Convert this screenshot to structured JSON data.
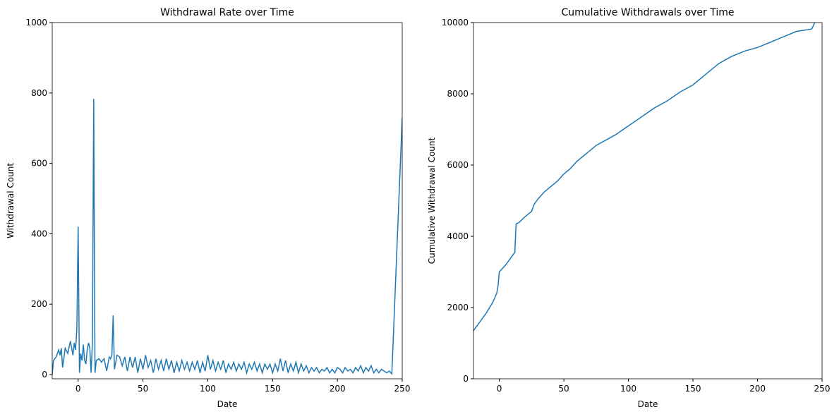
{
  "chart_data": [
    {
      "type": "line",
      "title": "Withdrawal Rate over Time",
      "xlabel": "Date",
      "ylabel": "Withdrawal Count",
      "xlim": [
        -20,
        250
      ],
      "ylim": [
        -12,
        1000
      ],
      "xticks": [
        0,
        50,
        100,
        150,
        200,
        250
      ],
      "yticks": [
        0,
        200,
        400,
        600,
        800,
        1000
      ],
      "x": [
        -20,
        -19,
        -17,
        -15,
        -14,
        -13,
        -12,
        -10,
        -8,
        -6,
        -5,
        -4,
        -3,
        -2,
        -1,
        0,
        1,
        2,
        3,
        4,
        5,
        6,
        7,
        8,
        9,
        10,
        11,
        12,
        13,
        14,
        16,
        18,
        20,
        22,
        24,
        25,
        26,
        27,
        28,
        30,
        32,
        34,
        36,
        38,
        40,
        42,
        44,
        46,
        48,
        50,
        52,
        54,
        56,
        58,
        60,
        62,
        64,
        66,
        68,
        70,
        72,
        74,
        76,
        78,
        80,
        82,
        84,
        86,
        88,
        90,
        92,
        94,
        96,
        98,
        100,
        102,
        104,
        106,
        108,
        110,
        112,
        114,
        116,
        118,
        120,
        122,
        124,
        126,
        128,
        130,
        132,
        134,
        136,
        138,
        140,
        142,
        144,
        146,
        148,
        150,
        152,
        154,
        156,
        158,
        160,
        162,
        164,
        166,
        168,
        170,
        172,
        174,
        176,
        178,
        180,
        182,
        184,
        186,
        188,
        190,
        192,
        194,
        196,
        198,
        200,
        202,
        204,
        206,
        208,
        210,
        212,
        214,
        216,
        218,
        220,
        222,
        224,
        226,
        228,
        230,
        232,
        234,
        236,
        238,
        240,
        242,
        250
      ],
      "series": [
        {
          "color": "#1f77b4",
          "values": [
            0,
            40,
            50,
            70,
            55,
            75,
            20,
            75,
            60,
            95,
            75,
            55,
            90,
            70,
            130,
            420,
            5,
            60,
            40,
            85,
            40,
            30,
            70,
            90,
            75,
            5,
            90,
            783,
            5,
            40,
            45,
            35,
            45,
            10,
            50,
            45,
            55,
            168,
            15,
            55,
            50,
            25,
            50,
            10,
            50,
            20,
            50,
            5,
            45,
            15,
            55,
            20,
            40,
            5,
            45,
            15,
            40,
            10,
            45,
            15,
            40,
            5,
            35,
            10,
            40,
            15,
            35,
            10,
            35,
            15,
            40,
            5,
            35,
            10,
            55,
            15,
            40,
            10,
            35,
            15,
            40,
            5,
            30,
            15,
            35,
            10,
            30,
            15,
            35,
            5,
            30,
            15,
            35,
            10,
            30,
            5,
            30,
            15,
            30,
            5,
            30,
            10,
            45,
            10,
            40,
            5,
            30,
            10,
            35,
            5,
            30,
            10,
            25,
            5,
            20,
            10,
            20,
            5,
            15,
            10,
            20,
            5,
            15,
            5,
            20,
            15,
            5,
            20,
            10,
            15,
            5,
            20,
            10,
            25,
            5,
            20,
            10,
            25,
            5,
            15,
            5,
            15,
            10,
            5,
            10,
            2,
            730
          ]
        }
      ]
    },
    {
      "type": "line",
      "title": "Cumulative Withdrawals over Time",
      "xlabel": "Date",
      "ylabel": "Cumulative Withdrawal Count",
      "xlim": [
        -20,
        250
      ],
      "ylim": [
        0,
        10000
      ],
      "xticks": [
        0,
        50,
        100,
        150,
        200,
        250
      ],
      "yticks": [
        0,
        2000,
        4000,
        6000,
        8000,
        10000
      ],
      "x": [
        -20,
        -15,
        -10,
        -5,
        -2,
        -1,
        0,
        5,
        10,
        12,
        13,
        15,
        20,
        25,
        27,
        30,
        35,
        40,
        45,
        50,
        55,
        60,
        65,
        70,
        75,
        80,
        90,
        100,
        110,
        120,
        130,
        140,
        150,
        160,
        170,
        180,
        190,
        200,
        210,
        220,
        230,
        242,
        245
      ],
      "series": [
        {
          "color": "#1f77b4",
          "values": [
            1350,
            1600,
            1850,
            2150,
            2400,
            2600,
            3000,
            3200,
            3450,
            3550,
            4350,
            4380,
            4550,
            4700,
            4900,
            5050,
            5250,
            5400,
            5550,
            5750,
            5900,
            6100,
            6250,
            6400,
            6550,
            6650,
            6850,
            7100,
            7350,
            7600,
            7800,
            8050,
            8250,
            8550,
            8850,
            9050,
            9200,
            9300,
            9450,
            9600,
            9750,
            9820,
            10050
          ]
        }
      ]
    }
  ]
}
